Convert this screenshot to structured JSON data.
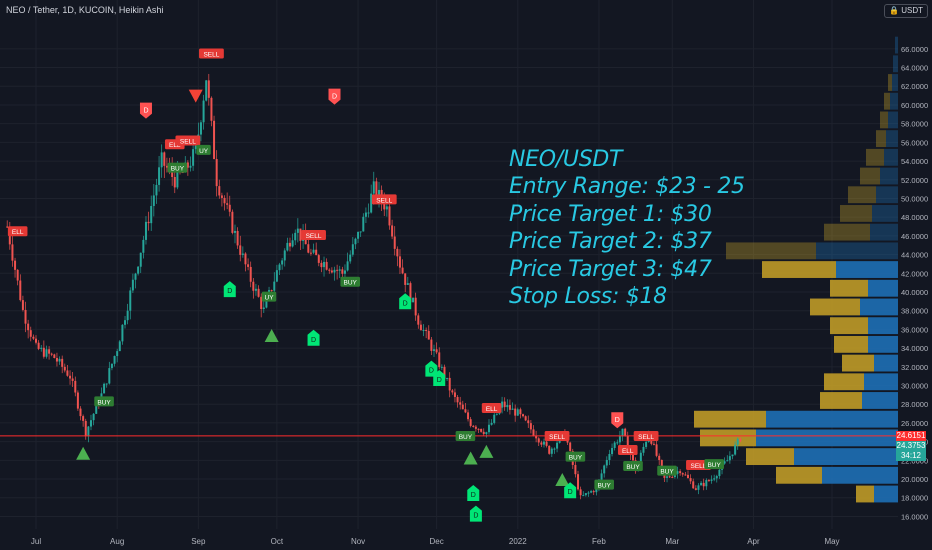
{
  "header": {
    "title": "NEO / Tether, 1D, KUCOIN, Heikin Ashi",
    "currency": "USDT"
  },
  "overlay_text": {
    "line1": "NEO/USDT",
    "line2": "Entry Range: $23 - 25",
    "line3": "Price Target 1: $30",
    "line4": "Price Target 2: $37",
    "line5": "Price Target 3: $47",
    "line6": "Stop Loss: $18"
  },
  "price_tags": {
    "red_line_price": "24.6151",
    "last_price": "24.3753",
    "countdown": "34:12"
  },
  "colors": {
    "background": "#131722",
    "grid": "#1e222d",
    "up_candle": "#26a69a",
    "down_candle": "#ef5350",
    "buy_label": "#2e7d32",
    "sell_label": "#e53935",
    "buy_triangle": "#4caf50",
    "sell_triangle": "#f44336",
    "d_marker_green": "#00e676",
    "d_marker_red": "#ff5252",
    "overlay_text": "#29c9e3",
    "volume_left_gold": "#c9a227",
    "volume_right_blue": "#1e6fb5",
    "red_line": "#ff2d2d",
    "last_price_tag": "#26a69a"
  },
  "chart_data": {
    "type": "candlestick",
    "style": "Heikin Ashi",
    "symbol": "NEO/USDT",
    "timeframe": "1D",
    "exchange": "KUCOIN",
    "x_tick_labels": [
      "Jul",
      "Aug",
      "Sep",
      "Oct",
      "Nov",
      "Dec",
      "2022",
      "Feb",
      "Mar",
      "Apr",
      "May"
    ],
    "y_tick_labels": [
      "66.0000",
      "64.0000",
      "62.0000",
      "60.0000",
      "58.0000",
      "56.0000",
      "54.0000",
      "52.0000",
      "50.0000",
      "48.0000",
      "46.0000",
      "44.0000",
      "42.0000",
      "40.0000",
      "38.0000",
      "36.0000",
      "34.0000",
      "32.0000",
      "30.0000",
      "28.0000",
      "26.0000",
      "24.0000",
      "22.0000",
      "20.0000",
      "18.0000",
      "16.0000"
    ],
    "ylim": [
      15.3,
      67.8
    ],
    "horizontal_line": 24.6151,
    "close_path": [
      {
        "d": "2021-06-20",
        "c": 47
      },
      {
        "d": "2021-06-26",
        "c": 38
      },
      {
        "d": "2021-07-01",
        "c": 34
      },
      {
        "d": "2021-07-08",
        "c": 33
      },
      {
        "d": "2021-07-14",
        "c": 31
      },
      {
        "d": "2021-07-20",
        "c": 25
      },
      {
        "d": "2021-07-26",
        "c": 29
      },
      {
        "d": "2021-08-01",
        "c": 34
      },
      {
        "d": "2021-08-07",
        "c": 41
      },
      {
        "d": "2021-08-13",
        "c": 48
      },
      {
        "d": "2021-08-18",
        "c": 54
      },
      {
        "d": "2021-08-23",
        "c": 52
      },
      {
        "d": "2021-08-27",
        "c": 53
      },
      {
        "d": "2021-08-31",
        "c": 55
      },
      {
        "d": "2021-09-04",
        "c": 63
      },
      {
        "d": "2021-09-08",
        "c": 52
      },
      {
        "d": "2021-09-14",
        "c": 47
      },
      {
        "d": "2021-09-20",
        "c": 42
      },
      {
        "d": "2021-09-26",
        "c": 38
      },
      {
        "d": "2021-10-02",
        "c": 43
      },
      {
        "d": "2021-10-08",
        "c": 47
      },
      {
        "d": "2021-10-14",
        "c": 44
      },
      {
        "d": "2021-10-20",
        "c": 43
      },
      {
        "d": "2021-10-26",
        "c": 42
      },
      {
        "d": "2021-11-01",
        "c": 46
      },
      {
        "d": "2021-11-07",
        "c": 51
      },
      {
        "d": "2021-11-12",
        "c": 49
      },
      {
        "d": "2021-11-17",
        "c": 43
      },
      {
        "d": "2021-11-24",
        "c": 37
      },
      {
        "d": "2021-12-01",
        "c": 33
      },
      {
        "d": "2021-12-07",
        "c": 29
      },
      {
        "d": "2021-12-14",
        "c": 26
      },
      {
        "d": "2021-12-20",
        "c": 25
      },
      {
        "d": "2021-12-26",
        "c": 28
      },
      {
        "d": "2022-01-01",
        "c": 27
      },
      {
        "d": "2022-01-07",
        "c": 25
      },
      {
        "d": "2022-01-13",
        "c": 23
      },
      {
        "d": "2022-01-19",
        "c": 25
      },
      {
        "d": "2022-01-25",
        "c": 18
      },
      {
        "d": "2022-01-31",
        "c": 19
      },
      {
        "d": "2022-02-05",
        "c": 23
      },
      {
        "d": "2022-02-10",
        "c": 25
      },
      {
        "d": "2022-02-15",
        "c": 21
      },
      {
        "d": "2022-02-20",
        "c": 25
      },
      {
        "d": "2022-02-26",
        "c": 20
      },
      {
        "d": "2022-03-04",
        "c": 21
      },
      {
        "d": "2022-03-10",
        "c": 19
      },
      {
        "d": "2022-03-16",
        "c": 20
      },
      {
        "d": "2022-03-22",
        "c": 22
      },
      {
        "d": "2022-03-27",
        "c": 24.4
      }
    ],
    "signals": [
      {
        "label": "BUY",
        "d": "2021-07-27",
        "p": 28.3
      },
      {
        "label": "SELL",
        "d": "2021-06-24",
        "p": 46.5,
        "partial": "ELL"
      },
      {
        "label": "SELL",
        "d": "2021-08-23",
        "p": 55.8,
        "partial": "ELL"
      },
      {
        "label": "SELL",
        "d": "2021-08-28",
        "p": 56.2
      },
      {
        "label": "BUY",
        "d": "2021-08-24",
        "p": 53.3
      },
      {
        "label": "BUY",
        "d": "2021-09-03",
        "p": 55.2,
        "partial": "UY"
      },
      {
        "label": "SELL",
        "d": "2021-09-06",
        "p": 65.5
      },
      {
        "label": "BUY",
        "d": "2021-09-28",
        "p": 39.5,
        "partial": "UY"
      },
      {
        "label": "SELL",
        "d": "2021-10-15",
        "p": 46.1
      },
      {
        "label": "BUY",
        "d": "2021-10-29",
        "p": 41.1
      },
      {
        "label": "SELL",
        "d": "2021-11-11",
        "p": 49.9
      },
      {
        "label": "BUY",
        "d": "2021-12-12",
        "p": 24.6
      },
      {
        "label": "SELL",
        "d": "2021-12-22",
        "p": 27.6,
        "partial": "ELL"
      },
      {
        "label": "SELL",
        "d": "2022-01-16",
        "p": 24.6
      },
      {
        "label": "BUY",
        "d": "2022-01-23",
        "p": 22.4
      },
      {
        "label": "BUY",
        "d": "2022-02-03",
        "p": 19.4
      },
      {
        "label": "SELL",
        "d": "2022-02-19",
        "p": 24.6
      },
      {
        "label": "SELL",
        "d": "2022-02-12",
        "p": 23.1,
        "partial": "ELL"
      },
      {
        "label": "SELL",
        "d": "2022-03-11",
        "p": 21.5
      },
      {
        "label": "BUY",
        "d": "2022-02-14",
        "p": 21.4
      },
      {
        "label": "BUY",
        "d": "2022-02-27",
        "p": 20.9
      },
      {
        "label": "BUY",
        "d": "2022-03-17",
        "p": 21.6
      }
    ],
    "triangles": [
      {
        "dir": "up",
        "d": "2021-07-19",
        "p": 22.7
      },
      {
        "dir": "down",
        "d": "2021-08-31",
        "p": 61.0
      },
      {
        "dir": "up",
        "d": "2021-09-29",
        "p": 35.3
      },
      {
        "dir": "up",
        "d": "2021-12-14",
        "p": 22.2
      },
      {
        "dir": "up",
        "d": "2021-12-20",
        "p": 22.9
      },
      {
        "dir": "up",
        "d": "2022-01-18",
        "p": 19.9
      }
    ],
    "d_markers": [
      {
        "color": "red",
        "d": "2021-08-12",
        "p": 59.5
      },
      {
        "color": "red",
        "d": "2021-10-23",
        "p": 61.0
      },
      {
        "color": "red",
        "d": "2022-02-08",
        "p": 26.4
      },
      {
        "color": "green",
        "d": "2021-09-13",
        "p": 40.2
      },
      {
        "color": "green",
        "d": "2021-10-15",
        "p": 35.0
      },
      {
        "color": "green",
        "d": "2021-11-19",
        "p": 38.9
      },
      {
        "color": "green",
        "d": "2021-11-29",
        "p": 31.7
      },
      {
        "color": "green",
        "d": "2021-12-02",
        "p": 30.7
      },
      {
        "color": "green",
        "d": "2021-12-15",
        "p": 18.4
      },
      {
        "color": "green",
        "d": "2021-12-16",
        "p": 16.2
      },
      {
        "color": "green",
        "d": "2022-01-21",
        "p": 18.7
      }
    ],
    "volume_profile": [
      {
        "price": 66.4,
        "left": 0,
        "right": 3
      },
      {
        "price": 64.4,
        "left": 0,
        "right": 5
      },
      {
        "price": 62.4,
        "left": 4,
        "right": 6
      },
      {
        "price": 60.4,
        "left": 6,
        "right": 8
      },
      {
        "price": 58.4,
        "left": 8,
        "right": 10
      },
      {
        "price": 56.4,
        "left": 10,
        "right": 12
      },
      {
        "price": 54.4,
        "left": 18,
        "right": 14
      },
      {
        "price": 52.4,
        "left": 20,
        "right": 18
      },
      {
        "price": 50.4,
        "left": 28,
        "right": 22
      },
      {
        "price": 48.4,
        "left": 32,
        "right": 26
      },
      {
        "price": 46.4,
        "left": 46,
        "right": 28
      },
      {
        "price": 44.4,
        "left": 90,
        "right": 82
      },
      {
        "price": 42.4,
        "left": 74,
        "right": 62
      },
      {
        "price": 40.4,
        "left": 38,
        "right": 30
      },
      {
        "price": 38.4,
        "left": 50,
        "right": 38
      },
      {
        "price": 36.4,
        "left": 38,
        "right": 30
      },
      {
        "price": 34.4,
        "left": 34,
        "right": 30
      },
      {
        "price": 32.4,
        "left": 32,
        "right": 24
      },
      {
        "price": 30.4,
        "left": 40,
        "right": 34
      },
      {
        "price": 28.4,
        "left": 42,
        "right": 36
      },
      {
        "price": 26.4,
        "left": 72,
        "right": 132
      },
      {
        "price": 24.4,
        "left": 56,
        "right": 142
      },
      {
        "price": 22.4,
        "left": 48,
        "right": 104
      },
      {
        "price": 20.4,
        "left": 46,
        "right": 76
      },
      {
        "price": 18.4,
        "left": 18,
        "right": 24
      }
    ]
  }
}
